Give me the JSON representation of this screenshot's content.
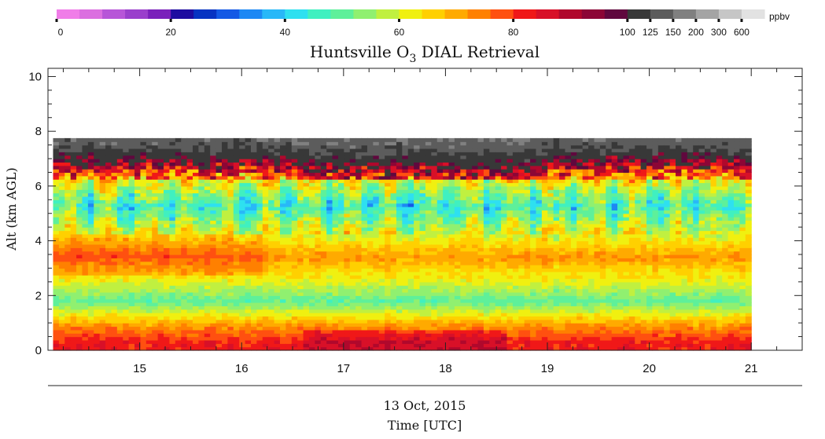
{
  "chart_data": {
    "type": "heatmap",
    "title": "Huntsville O",
    "title_subscript": "3",
    "title_suffix": " DIAL Retrieval",
    "ylabel": "Alt (km AGL)",
    "xlabel_date": "13 Oct, 2015",
    "xlabel": "Time [UTC]",
    "xlim": [
      14.1,
      21.5
    ],
    "ylim": [
      0,
      10.3
    ],
    "data_x_range": [
      14.15,
      21.0
    ],
    "data_y_range": [
      0,
      7.75
    ],
    "x_ticks": [
      15,
      16,
      17,
      18,
      19,
      20,
      21
    ],
    "x_tick_labels": [
      "15",
      "16",
      "17",
      "18",
      "19",
      "20",
      "21"
    ],
    "y_ticks": [
      0,
      2,
      4,
      6,
      8,
      10
    ],
    "y_tick_labels": [
      "0",
      "2",
      "4",
      "6",
      "8",
      "10"
    ],
    "colorbar": {
      "unit": "ppbv",
      "tick_labels": [
        "0",
        "20",
        "40",
        "60",
        "80",
        "100",
        "125",
        "150",
        "200",
        "300",
        "600"
      ],
      "colors": [
        "#f07de8",
        "#db6fe0",
        "#b755d8",
        "#9a3fcc",
        "#7a20bb",
        "#1e0ca0",
        "#0733c2",
        "#1459e5",
        "#1d88f4",
        "#28b8f8",
        "#2ee0f0",
        "#40f0c0",
        "#5ef09a",
        "#90f070",
        "#c0f040",
        "#f0f010",
        "#ffd000",
        "#ffaa00",
        "#ff8000",
        "#ff5010",
        "#f01818",
        "#d81028",
        "#b0082c",
        "#8c0636",
        "#60083e",
        "#383838",
        "#5c5c5c",
        "#808080",
        "#a4a4a4",
        "#c6c6c6",
        "#e2e2e2"
      ]
    },
    "profile_description": [
      {
        "alt_km": 0.3,
        "ppbv": 82
      },
      {
        "alt_km": 0.9,
        "ppbv": 72
      },
      {
        "alt_km": 1.8,
        "ppbv": 50
      },
      {
        "alt_km": 2.6,
        "ppbv": 62
      },
      {
        "alt_km": 3.4,
        "ppbv": 74
      },
      {
        "alt_km": 4.5,
        "ppbv": 58
      },
      {
        "alt_km": 5.3,
        "ppbv": 46
      },
      {
        "alt_km": 6.2,
        "ppbv": 62
      },
      {
        "alt_km": 7.0,
        "ppbv": 95
      },
      {
        "alt_km": 7.6,
        "ppbv": 130
      }
    ]
  }
}
